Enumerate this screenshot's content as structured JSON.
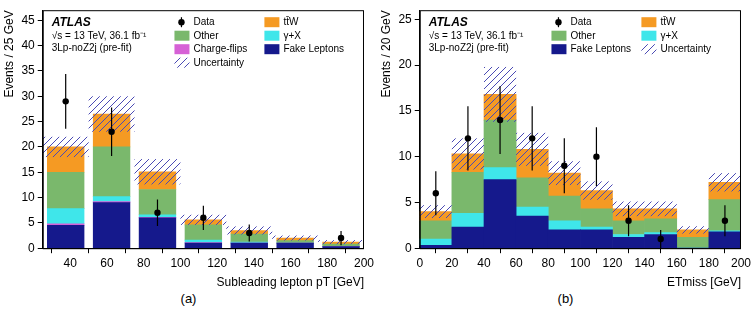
{
  "chart_data": [
    {
      "type": "bar",
      "subtitle": "(a)",
      "x_label": "Subleading lepton pT [GeV]",
      "y_label": "Events / 25 GeV",
      "annotations": [
        "ATLAS",
        "√s = 13 TeV, 36.1 fb⁻¹",
        "3Lp-noZ2j (pre-fit)"
      ],
      "stacked": true,
      "grid": false,
      "bins": [
        25,
        50,
        75,
        100,
        125,
        150,
        175,
        200
      ],
      "xlim": [
        25,
        200
      ],
      "xticks": [
        40,
        60,
        80,
        100,
        120,
        140,
        160,
        180,
        200
      ],
      "ylim": [
        0,
        47
      ],
      "yticks": [
        0,
        5,
        10,
        15,
        20,
        25,
        30,
        35,
        40,
        45
      ],
      "series": [
        {
          "name": "Fake Leptons",
          "color": "#15198c",
          "values": [
            4.5,
            9,
            6,
            1,
            1,
            1,
            0.3
          ]
        },
        {
          "name": "Charge-flips",
          "color": "#d661d6",
          "values": [
            0.3,
            0.2,
            0.1,
            0.1,
            0,
            0,
            0
          ]
        },
        {
          "name": "γ+X",
          "color": "#3fe6ea",
          "values": [
            3,
            1,
            0.5,
            0.5,
            0.2,
            0,
            0
          ]
        },
        {
          "name": "Other",
          "color": "#7ab86c",
          "values": [
            7.2,
            9.8,
            5,
            3,
            1.6,
            0.5,
            0.5
          ]
        },
        {
          "name": "tt̄W",
          "color": "#f59a23",
          "values": [
            5,
            6.5,
            3.5,
            1,
            0.7,
            0.5,
            0.4
          ]
        }
      ],
      "uncertainty": {
        "name": "Uncertainty",
        "color": "#4a4ab4",
        "values": [
          2,
          3.5,
          2.5,
          1,
          0.8,
          0.5,
          0.4
        ]
      },
      "data": {
        "name": "Data",
        "color": "#000000",
        "values": [
          29,
          23,
          7,
          6,
          3,
          null,
          2
        ],
        "errors": [
          5.4,
          4.8,
          2.6,
          2.4,
          1.7,
          null,
          1.4
        ]
      }
    },
    {
      "type": "bar",
      "subtitle": "(b)",
      "x_label": "ETmiss [GeV]",
      "y_label": "Events / 20 GeV",
      "annotations": [
        "ATLAS",
        "√s = 13 TeV, 36.1 fb⁻¹",
        "3Lp-noZ2j (pre-fit)"
      ],
      "stacked": true,
      "grid": false,
      "bins": [
        0,
        20,
        40,
        60,
        80,
        100,
        120,
        140,
        160,
        180,
        200
      ],
      "xlim": [
        0,
        200
      ],
      "xticks": [
        0,
        20,
        40,
        60,
        80,
        100,
        120,
        140,
        160,
        180,
        200
      ],
      "ylim": [
        0,
        26
      ],
      "yticks": [
        0,
        5,
        10,
        15,
        20,
        25
      ],
      "series": [
        {
          "name": "Fake Leptons",
          "color": "#15198c",
          "values": [
            0.3,
            2.3,
            7.5,
            3.5,
            2,
            2,
            1.2,
            1.5,
            0,
            1.8
          ]
        },
        {
          "name": "γ+X",
          "color": "#3fe6ea",
          "values": [
            0.7,
            1.5,
            1.3,
            1,
            1,
            0.3,
            0.3,
            0.2,
            0,
            0.1
          ]
        },
        {
          "name": "Other",
          "color": "#7ab86c",
          "values": [
            2,
            4.5,
            5.2,
            3.2,
            2.7,
            2,
            1.5,
            1.5,
            1.2,
            3.4
          ]
        },
        {
          "name": "tt̄W",
          "color": "#f59a23",
          "values": [
            1,
            2,
            2.8,
            3.1,
            2.5,
            2,
            1.3,
            1.1,
            0.8,
            1.9
          ]
        }
      ],
      "uncertainty": {
        "name": "Uncertainty",
        "color": "#4a4ab4",
        "values": [
          0.7,
          1.7,
          3,
          1.8,
          1.3,
          1,
          0.8,
          0.8,
          0.4,
          1
        ]
      },
      "data": {
        "name": "Data",
        "color": "#000000",
        "values": [
          6,
          12,
          14,
          12,
          9,
          10,
          3,
          1,
          null,
          3
        ],
        "errors": [
          2.4,
          3.5,
          3.7,
          3.5,
          3,
          3.2,
          1.7,
          1,
          null,
          1.7
        ]
      }
    }
  ]
}
